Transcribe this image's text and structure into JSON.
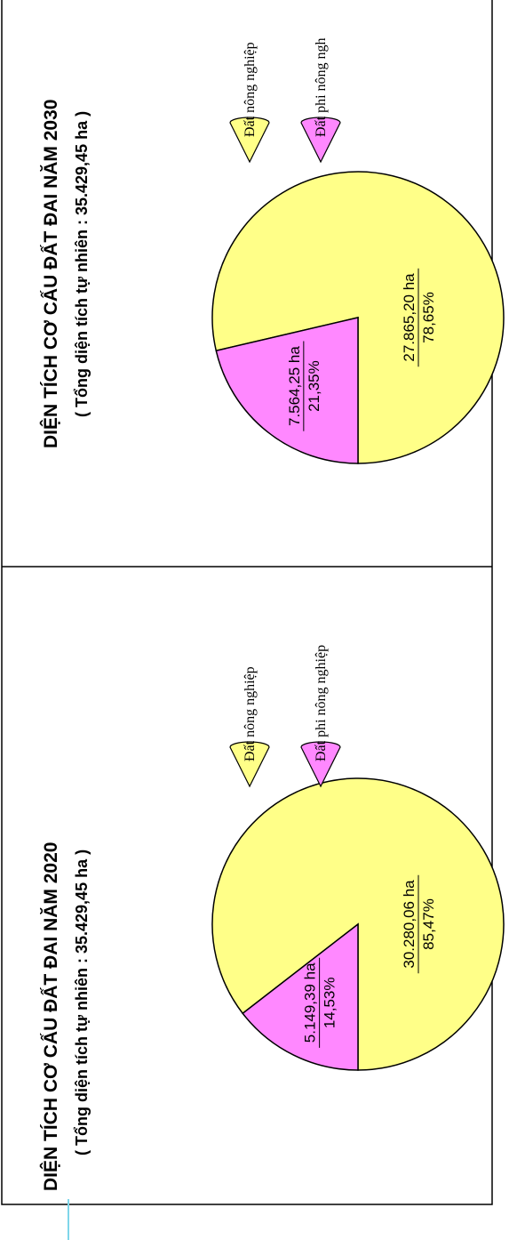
{
  "colors": {
    "agri": "#ffff88",
    "nonagri": "#ff88ff",
    "stroke": "#000000",
    "accent_line": "#7fd6ea"
  },
  "chart_data": [
    {
      "type": "pie",
      "title": "DIỆN TÍCH CƠ CẤU ĐẤT ĐAI NĂM 2020",
      "subtitle": "( Tổng diện tích tự nhiên : 35.429,45 ha )",
      "legend": [
        "Đất nông nghiệp",
        "Đất phi nông nghiệp"
      ],
      "slices": [
        {
          "name": "Đất nông nghiệp",
          "value": 30280.06,
          "percent": 85.47,
          "area_label": "30.280,06 ha",
          "pct_label": "85,47%"
        },
        {
          "name": "Đất phi nông nghiệp",
          "value": 5149.39,
          "percent": 14.53,
          "area_label": "5.149,39 ha",
          "pct_label": "14,53%"
        }
      ]
    },
    {
      "type": "pie",
      "title": "DIỆN TÍCH CƠ CẤU ĐẤT ĐAI NĂM 2030",
      "subtitle": "( Tổng diện tích tự nhiên : 35.429,45 ha )",
      "legend": [
        "Đất nông nghiệp",
        "Đất phi nông ngh"
      ],
      "slices": [
        {
          "name": "Đất nông nghiệp",
          "value": 27865.2,
          "percent": 78.65,
          "area_label": "27.865,20 ha",
          "pct_label": "78,65%"
        },
        {
          "name": "Đất phi nông nghiệp",
          "value": 7564.25,
          "percent": 21.35,
          "area_label": "7.564,25 ha",
          "pct_label": "21,35%"
        }
      ]
    }
  ]
}
